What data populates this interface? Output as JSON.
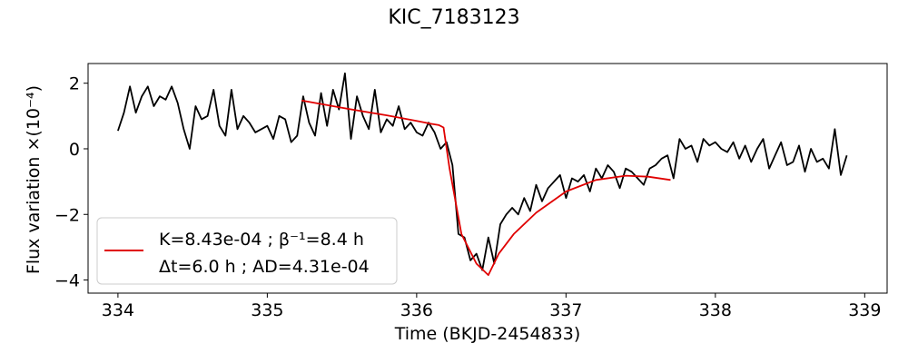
{
  "chart_data": {
    "type": "line",
    "title": "KIC_7183123",
    "xlabel": "Time (BKJD-2454833)",
    "ylabel": "Flux variation ×(10⁻⁴)",
    "xlim": [
      333.8,
      339.15
    ],
    "ylim": [
      -4.4,
      2.6
    ],
    "xticks": [
      334,
      335,
      336,
      337,
      338,
      339
    ],
    "yticks": [
      -4,
      -2,
      0,
      2
    ],
    "ytick_labels": [
      "−4",
      "−2",
      "0",
      "2"
    ],
    "grid": false,
    "legend_position": "lower-left",
    "legend": {
      "line1": "K=8.43e-04 ; β⁻¹=8.4 h",
      "line2": "Δt=6.0 h ; AD=4.31e-04"
    },
    "colors": {
      "data": "#000000",
      "model": "#e00000"
    },
    "series": [
      {
        "x": [
          334.0,
          334.04,
          334.08,
          334.12,
          334.16,
          334.2,
          334.24,
          334.28,
          334.32,
          334.36,
          334.4,
          334.44,
          334.48,
          334.52,
          334.56,
          334.6,
          334.64,
          334.68,
          334.72,
          334.76,
          334.8,
          334.84,
          334.88,
          334.92,
          334.96,
          335.0,
          335.04,
          335.08,
          335.12,
          335.16,
          335.2,
          335.24,
          335.28,
          335.32,
          335.36,
          335.4,
          335.44,
          335.48,
          335.52,
          335.56,
          335.6,
          335.64,
          335.68,
          335.72,
          335.76,
          335.8,
          335.84,
          335.88,
          335.92,
          335.96,
          336.0,
          336.04,
          336.08,
          336.12,
          336.16,
          336.2,
          336.24,
          336.28,
          336.32,
          336.36,
          336.4,
          336.44,
          336.48,
          336.52,
          336.56,
          336.6,
          336.64,
          336.68,
          336.72,
          336.76,
          336.8,
          336.84,
          336.88,
          336.92,
          336.96,
          337.0,
          337.04,
          337.08,
          337.12,
          337.16,
          337.2,
          337.24,
          337.28,
          337.32,
          337.36,
          337.4,
          337.44,
          337.48,
          337.52,
          337.56,
          337.6,
          337.64,
          337.68,
          337.72,
          337.76,
          337.8,
          337.84,
          337.88,
          337.92,
          337.96,
          338.0,
          338.04,
          338.08,
          338.12,
          338.16,
          338.2,
          338.24,
          338.28,
          338.32,
          338.36,
          338.4,
          338.44,
          338.48,
          338.52,
          338.56,
          338.6,
          338.64,
          338.68,
          338.72,
          338.76,
          338.8,
          338.84,
          338.88
        ],
        "y": [
          0.55,
          1.1,
          1.9,
          1.1,
          1.6,
          1.9,
          1.3,
          1.6,
          1.5,
          1.9,
          1.4,
          0.6,
          0.0,
          1.3,
          0.9,
          1.0,
          1.8,
          0.7,
          0.4,
          1.8,
          0.6,
          1.0,
          0.8,
          0.5,
          0.6,
          0.7,
          0.3,
          1.0,
          0.9,
          0.2,
          0.4,
          1.6,
          0.8,
          0.4,
          1.7,
          0.7,
          1.8,
          1.2,
          2.3,
          0.3,
          1.6,
          1.0,
          0.6,
          1.8,
          0.5,
          0.9,
          0.7,
          1.3,
          0.6,
          0.8,
          0.5,
          0.4,
          0.8,
          0.5,
          0.0,
          0.2,
          -0.5,
          -2.6,
          -2.7,
          -3.4,
          -3.2,
          -3.7,
          -2.7,
          -3.5,
          -2.3,
          -2.0,
          -1.8,
          -2.0,
          -1.5,
          -1.9,
          -1.1,
          -1.6,
          -1.2,
          -1.0,
          -0.8,
          -1.5,
          -0.9,
          -1.0,
          -0.8,
          -1.3,
          -0.6,
          -0.9,
          -0.5,
          -0.7,
          -1.2,
          -0.6,
          -0.7,
          -0.9,
          -1.1,
          -0.6,
          -0.5,
          -0.3,
          -0.2,
          -0.9,
          0.3,
          0.0,
          0.1,
          -0.4,
          0.3,
          0.1,
          0.2,
          0.0,
          -0.1,
          0.2,
          -0.3,
          0.1,
          -0.4,
          0.0,
          0.3,
          -0.6,
          -0.2,
          0.2,
          -0.5,
          -0.4,
          0.1,
          -0.7,
          0.0,
          -0.4,
          -0.3,
          -0.6,
          0.6,
          -0.8,
          -0.2
        ]
      },
      {
        "x": [
          335.23,
          335.5,
          335.8,
          336.0,
          336.1,
          336.15,
          336.18,
          336.22,
          336.3,
          336.4,
          336.48,
          336.55,
          336.65,
          336.8,
          337.0,
          337.2,
          337.4,
          337.55,
          337.7
        ],
        "y": [
          1.47,
          1.25,
          1.02,
          0.85,
          0.76,
          0.72,
          0.65,
          -0.6,
          -2.6,
          -3.5,
          -3.85,
          -3.2,
          -2.6,
          -1.95,
          -1.3,
          -0.95,
          -0.82,
          -0.85,
          -0.95
        ]
      }
    ]
  }
}
